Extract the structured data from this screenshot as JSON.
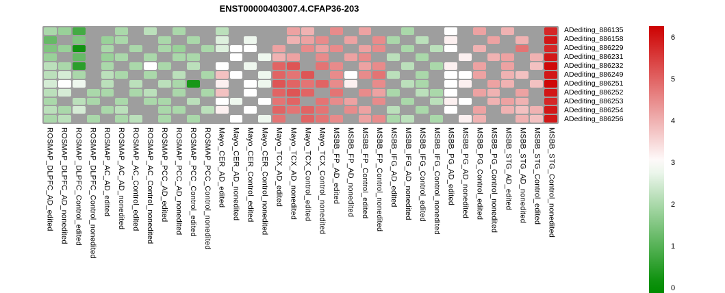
{
  "title": "ENST00000403007.4.CFAP36-203",
  "chart_data": {
    "type": "heatmap",
    "title": "ENST00000403007.4.CFAP36-203",
    "rows": [
      "ADediting_886135",
      "ADediting_886158",
      "ADediting_886229",
      "ADediting_886231",
      "ADediting_886232",
      "ADediting_886249",
      "ADediting_886251",
      "ADediting_886252",
      "ADediting_886253",
      "ADediting_886254",
      "ADediting_886256"
    ],
    "columns": [
      "ROSMAP_DLPFC_AD_edited",
      "ROSMAP_DLPFC_AD_nonedited",
      "ROSMAP_DLPFC_Control_edited",
      "ROSMAP_DLPFC_Control_nonedited",
      "ROSMAP_AC_AD_edited",
      "ROSMAP_AC_AD_nonedited",
      "ROSMAP_AC_Control_edited",
      "ROSMAP_AC_Control_nonedited",
      "ROSMAP_PCC_AD_edited",
      "ROSMAP_PCC_AD_nonedited",
      "ROSMAP_PCC_Control_edited",
      "ROSMAP_PCC_Control_nonedited",
      "Mayo_CER_AD_edited",
      "Mayo_CER_AD_nonedited",
      "Mayo_CER_Control_edited",
      "Mayo_CER_Control_nonedited",
      "Mayo_TCX_AD_edited",
      "Mayo_TCX_AD_nonedited",
      "Mayo_TCX_Control_edited",
      "Mayo_TCX_Control_nonedited",
      "MSBB_FP_AD_edited",
      "MSBB_FP_AD_nonedited",
      "MSBB_FP_Control_edited",
      "MSBB_FP_Control_nonedited",
      "MSBB_IFG_AD_edited",
      "MSBB_IFG_AD_nonedited",
      "MSBB_IFG_Control_edited",
      "MSBB_IFG_Control_nonedited",
      "MSBB_PG_AD_edited",
      "MSBB_PG_AD_nonedited",
      "MSBB_PG_Control_edited",
      "MSBB_PG_Control_nonedited",
      "MSBB_STG_AD_edited",
      "MSBB_STG_AD_nonedited",
      "MSBB_STG_Control_edited",
      "MSBB_STG_Control_nonedited"
    ],
    "values": [
      [
        2.0,
        1.8,
        0.8,
        null,
        null,
        2.0,
        null,
        2.2,
        null,
        2.0,
        null,
        null,
        2.2,
        null,
        null,
        null,
        null,
        4.2,
        4.0,
        null,
        4.5,
        null,
        4.2,
        null,
        null,
        2.0,
        null,
        null,
        3.0,
        null,
        4.2,
        null,
        4.0,
        null,
        null,
        5.8
      ],
      [
        1.2,
        null,
        1.5,
        null,
        1.8,
        2.0,
        null,
        null,
        2.0,
        null,
        2.0,
        null,
        2.6,
        null,
        2.8,
        null,
        null,
        4.0,
        4.2,
        4.5,
        null,
        4.2,
        null,
        4.5,
        2.0,
        null,
        2.2,
        null,
        3.2,
        null,
        null,
        4.2,
        null,
        4.0,
        null,
        6.0
      ],
      [
        1.5,
        1.8,
        0.2,
        null,
        2.0,
        null,
        2.0,
        null,
        2.0,
        1.8,
        null,
        2.0,
        2.6,
        3.0,
        3.0,
        null,
        4.2,
        null,
        4.5,
        4.2,
        4.5,
        null,
        4.2,
        4.5,
        null,
        2.0,
        null,
        2.2,
        3.0,
        null,
        4.0,
        null,
        null,
        4.8,
        null,
        5.8
      ],
      [
        1.8,
        null,
        1.2,
        null,
        1.8,
        2.0,
        null,
        2.0,
        null,
        2.0,
        2.0,
        null,
        null,
        3.0,
        null,
        2.8,
        4.0,
        4.2,
        null,
        4.5,
        null,
        4.2,
        4.5,
        null,
        2.2,
        null,
        2.0,
        null,
        null,
        3.2,
        null,
        4.0,
        4.2,
        null,
        4.0,
        6.0
      ],
      [
        2.2,
        2.0,
        0.5,
        null,
        2.0,
        null,
        2.0,
        3.0,
        2.0,
        null,
        2.2,
        null,
        3.0,
        null,
        2.8,
        null,
        5.0,
        5.2,
        null,
        4.8,
        4.5,
        null,
        4.2,
        4.5,
        null,
        2.2,
        null,
        2.0,
        3.2,
        null,
        4.2,
        null,
        4.2,
        null,
        3.8,
        6.2
      ],
      [
        2.2,
        2.5,
        2.0,
        null,
        2.2,
        2.0,
        null,
        2.0,
        null,
        2.2,
        null,
        2.0,
        3.8,
        3.0,
        null,
        2.8,
        5.0,
        4.8,
        5.2,
        null,
        4.5,
        3.0,
        4.5,
        4.8,
        2.2,
        null,
        2.0,
        null,
        3.0,
        3.0,
        4.2,
        null,
        4.0,
        3.8,
        null,
        6.0
      ],
      [
        2.5,
        3.0,
        2.8,
        null,
        2.2,
        null,
        2.2,
        null,
        2.2,
        2.0,
        0.3,
        null,
        3.2,
        null,
        3.0,
        2.8,
        5.2,
        5.0,
        4.8,
        5.0,
        4.5,
        3.2,
        null,
        4.5,
        null,
        2.2,
        2.0,
        null,
        3.0,
        3.2,
        null,
        4.2,
        4.0,
        null,
        3.8,
        6.2
      ],
      [
        2.2,
        2.5,
        null,
        2.0,
        2.0,
        null,
        2.0,
        2.2,
        null,
        2.0,
        null,
        2.0,
        3.8,
        null,
        3.0,
        null,
        5.0,
        5.2,
        5.0,
        null,
        4.8,
        null,
        4.5,
        4.2,
        2.0,
        null,
        2.2,
        2.0,
        3.0,
        null,
        4.2,
        4.0,
        null,
        4.2,
        null,
        6.0
      ],
      [
        2.0,
        null,
        2.2,
        2.0,
        null,
        2.0,
        null,
        2.0,
        2.0,
        null,
        2.2,
        null,
        3.0,
        2.8,
        null,
        3.0,
        4.8,
        5.0,
        null,
        4.8,
        4.5,
        4.2,
        null,
        4.5,
        null,
        2.0,
        null,
        2.2,
        3.2,
        3.0,
        null,
        4.0,
        4.2,
        4.0,
        null,
        5.8
      ],
      [
        2.2,
        2.0,
        2.5,
        null,
        2.0,
        2.2,
        null,
        null,
        2.0,
        2.0,
        null,
        2.2,
        3.2,
        null,
        3.0,
        null,
        5.0,
        4.8,
        5.0,
        4.8,
        null,
        4.5,
        4.2,
        null,
        2.2,
        null,
        2.0,
        null,
        3.0,
        null,
        4.2,
        null,
        4.0,
        3.8,
        4.0,
        6.0
      ],
      [
        2.0,
        2.2,
        null,
        2.0,
        null,
        2.0,
        2.2,
        null,
        2.0,
        null,
        2.0,
        null,
        null,
        3.0,
        null,
        2.8,
        4.8,
        null,
        5.0,
        4.8,
        4.5,
        null,
        4.2,
        4.5,
        2.0,
        2.2,
        null,
        2.0,
        null,
        3.2,
        4.0,
        null,
        null,
        4.0,
        3.8,
        6.0
      ]
    ],
    "na_color": "#9e9e9e",
    "colorscale": {
      "min": 0,
      "mid": 3,
      "max": 6.3,
      "min_color": "#008B00",
      "mid_color": "#FFFFFF",
      "max_color": "#CD0000"
    },
    "legend": {
      "position": "right",
      "ticks": [
        "6",
        "5",
        "4",
        "3",
        "2",
        "1",
        "0"
      ],
      "tick_values": [
        6,
        5,
        4,
        3,
        2,
        1,
        0
      ]
    },
    "grid": "off",
    "xlabel": "",
    "ylabel": ""
  }
}
